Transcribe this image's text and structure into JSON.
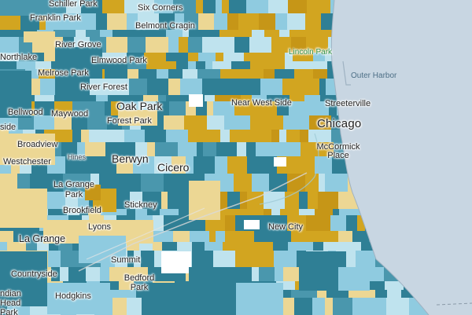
{
  "map": {
    "colors": {
      "lake": "#c8d6e2",
      "dark_teal": "#2f7f95",
      "mid_teal": "#4a97ad",
      "light_blue": "#8fcbe0",
      "pale_blue": "#bfe3ee",
      "gold": "#d2a520",
      "dark_gold": "#c69617",
      "tan": "#ecd794",
      "white": "#ffffff"
    },
    "labels": {
      "schiller_park": "Schiller Park",
      "six_corners": "Six Corners",
      "franklin_park": "Franklin Park",
      "belmont_cragin": "Belmont Cragin",
      "northlake": "Northlake",
      "river_grove": "River Grove",
      "elmwood_park": "Elmwood Park",
      "lincoln_park": "Lincoln Park",
      "outer_harbor": "Outer Harbor",
      "melrose_park": "Melrose Park",
      "river_forest": "River Forest",
      "oak_park": "Oak Park",
      "near_west_side": "Near West Side",
      "streeterville": "Streeterville",
      "bellwood": "Bellwood",
      "maywood": "Maywood",
      "forest_park": "Forest Park",
      "chicago": "Chicago",
      "hillside": "side",
      "broadview": "Broadview",
      "mccormick_place": "McCormick Place",
      "hines": "Hines",
      "westchester": "Westchester",
      "berwyn": "Berwyn",
      "cicero": "Cicero",
      "la_grange_park": "La Grange Park",
      "stickney": "Stickney",
      "brookfield": "Brookfield",
      "lyons": "Lyons",
      "la_grange": "La Grange",
      "new_city": "New City",
      "summit": "Summit",
      "countryside": "Countryside",
      "bedford_park": "Bedford Park",
      "indian_head_park": "ndian Head Park",
      "hodgkins": "Hodgkins"
    }
  }
}
